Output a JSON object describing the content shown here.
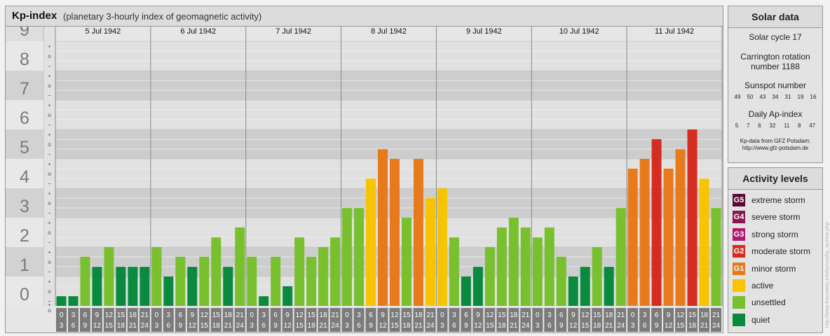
{
  "header": {
    "title": "Kp-index",
    "subtitle": "(planetary 3-hourly index of geomagnetic activity)"
  },
  "chart_data": {
    "type": "bar",
    "title": "Kp-index",
    "subtitle": "(planetary 3-hourly index of geomagnetic activity)",
    "ylim": [
      0,
      9
    ],
    "y_ticks": [
      "0",
      "1",
      "2",
      "3",
      "4",
      "5",
      "6",
      "7",
      "8",
      "9"
    ],
    "sub_ticks": [
      "+",
      "o",
      "−"
    ],
    "days": [
      "5 Jul 1942",
      "6 Jul 1942",
      "7 Jul 1942",
      "8 Jul 1942",
      "9 Jul 1942",
      "10 Jul 1942",
      "11 Jul 1942"
    ],
    "hour_start": [
      "0",
      "3",
      "6",
      "9",
      "12",
      "15",
      "18",
      "21"
    ],
    "hour_end": [
      "3",
      "6",
      "9",
      "12",
      "15",
      "18",
      "21",
      "24"
    ],
    "values": [
      [
        0.33,
        0.33,
        1.67,
        1.33,
        2.0,
        1.33,
        1.33,
        1.33
      ],
      [
        2.0,
        1.0,
        1.67,
        1.33,
        1.67,
        2.33,
        1.33,
        2.67
      ],
      [
        1.67,
        0.33,
        1.67,
        0.67,
        2.33,
        1.67,
        2.0,
        2.33
      ],
      [
        3.33,
        3.33,
        4.33,
        5.33,
        5.0,
        3.0,
        5.0,
        3.67
      ],
      [
        4.0,
        2.33,
        1.0,
        1.33,
        2.0,
        2.67,
        3.0,
        2.67
      ],
      [
        2.33,
        2.67,
        1.67,
        1.0,
        1.33,
        2.0,
        1.33,
        3.33
      ],
      [
        4.67,
        5.0,
        5.67,
        4.67,
        5.33,
        6.0,
        4.33,
        3.33
      ]
    ],
    "grid": true
  },
  "solar": {
    "title": "Solar data",
    "cycle": "Solar cycle 17",
    "carrington_line1": "Carrington rotation",
    "carrington_line2": "number 1188",
    "sunspot_label": "Sunspot number",
    "sunspot_values": [
      "49",
      "50",
      "43",
      "34",
      "31",
      "19",
      "16"
    ],
    "ap_label": "Daily Ap-index",
    "ap_values": [
      "5",
      "7",
      "6",
      "32",
      "11",
      "8",
      "47"
    ],
    "note_line1": "Kp-data from GFZ Potsdam:",
    "note_line2": "http://www.gfz-potsdam.de"
  },
  "activity": {
    "title": "Activity levels",
    "levels": [
      {
        "code": "G5",
        "label": "extreme storm",
        "color": "#5a0a32"
      },
      {
        "code": "G4",
        "label": "severe storm",
        "color": "#8c1450"
      },
      {
        "code": "G3",
        "label": "strong storm",
        "color": "#b4186e"
      },
      {
        "code": "G2",
        "label": "moderate storm",
        "color": "#d42c1e"
      },
      {
        "code": "G1",
        "label": "minor storm",
        "color": "#e87a1c"
      },
      {
        "code": "",
        "label": "active",
        "color": "#f8c400"
      },
      {
        "code": "",
        "label": "unsettled",
        "color": "#78c02e"
      },
      {
        "code": "",
        "label": "quiet",
        "color": "#0a8a3e"
      }
    ]
  },
  "credit": "http://www.theusekey.info/aurora/kp_archive.php"
}
